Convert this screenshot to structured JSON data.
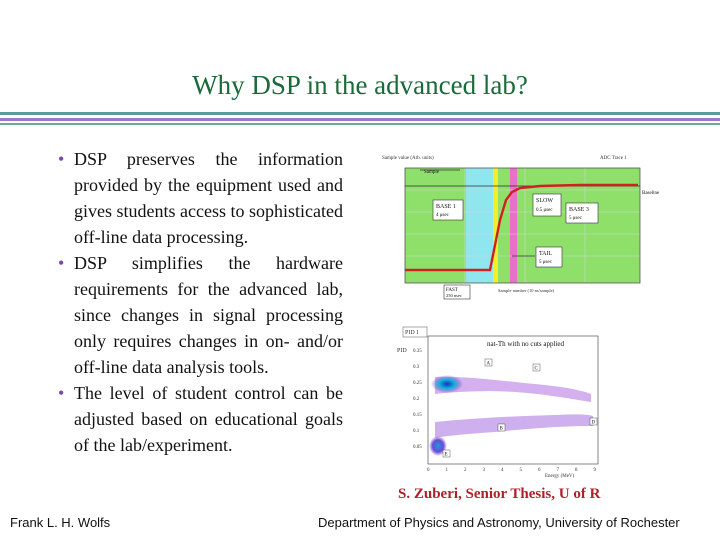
{
  "slide": {
    "title": "Why DSP in the advanced lab?",
    "bullets": [
      "DSP preserves the information provided by the equipment used and gives students access to sophisticated off-line data processing.",
      "DSP simplifies the hardware requirements for the advanced lab, since changes in signal processing only requires changes in on- and/or off-line data analysis tools.",
      "The level of student control can be adjusted based on educational goals of the lab/experiment."
    ],
    "bullet_glyph": "•",
    "credit": "S. Zuberi, Senior Thesis, U of R",
    "footer_left": "Frank L. H. Wolfs",
    "footer_right": "Department of Physics and Astronomy, University of Rochester"
  },
  "figure_waveform": {
    "labels": {
      "top_left": "Sample value (Arb. units)",
      "top_right": "ADC Trace 1",
      "sample": "Sample",
      "baseline": "Baseline",
      "base1": "BASE 1",
      "base1_sub": "4 μsec",
      "slow": "SLOW",
      "slow_sub": "0.5 μsec",
      "base3": "BASE 3",
      "base3_sub": "5 μsec",
      "tail": "TAIL",
      "tail_sub": "5 μsec",
      "fast": "FAST",
      "fast_sub": "250 nsec",
      "xaxis": "Sample number (10 ns/sample)"
    },
    "colors": {
      "green": "#8ee06a",
      "cyan": "#8fe6ef",
      "yellow": "#f2ef2a",
      "magenta": "#e870c8",
      "trace": "#d22020"
    }
  },
  "figure_psd": {
    "labels": {
      "pid": "PID 1",
      "title": "nat-Th with no cuts applied",
      "xlabel": "Energy (MeV)",
      "ylabel": "PID",
      "region_a": "A",
      "region_b": "B",
      "region_c": "C",
      "region_d": "D",
      "region_e": "E"
    },
    "xticks": [
      "0",
      "1",
      "2",
      "3",
      "4",
      "5",
      "6",
      "7",
      "8",
      "9"
    ],
    "yticks": [
      "0.35",
      "0.3",
      "0.25",
      "0.2",
      "0.15",
      "0.1",
      "0.05"
    ]
  }
}
